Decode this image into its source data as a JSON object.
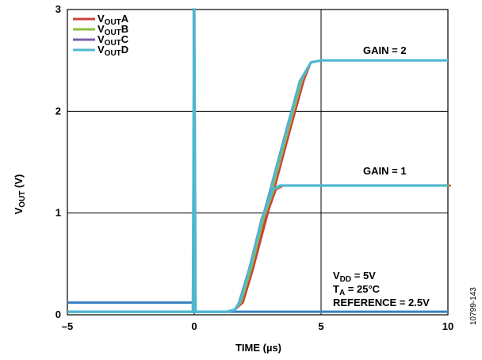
{
  "chart_data": {
    "type": "line",
    "xlabel": "TIME (µs)",
    "ylabel_main": "V",
    "ylabel_sub": "OUT",
    "ylabel_tail": " (V)",
    "xlim": [
      -5,
      10
    ],
    "ylim": [
      0,
      3
    ],
    "x_ticks": [
      -5,
      0,
      5,
      10
    ],
    "x_tick_labels": [
      "–5",
      "0",
      "5",
      "10"
    ],
    "y_ticks": [
      0,
      1,
      2,
      3
    ],
    "y_tick_labels": [
      "0",
      "1",
      "2",
      "3"
    ],
    "grid": true,
    "legend_position": "top-left",
    "series": [
      {
        "name_main": "V",
        "name_sub": "OUT",
        "name_tail": "A",
        "color": "#c9423a"
      },
      {
        "name_main": "V",
        "name_sub": "OUT",
        "name_tail": "B",
        "color": "#8dbf3a"
      },
      {
        "name_main": "V",
        "name_sub": "OUT",
        "name_tail": "C",
        "color": "#7b5ea8"
      },
      {
        "name_main": "V",
        "name_sub": "OUT",
        "name_tail": "D",
        "color": "#4fb7cf"
      }
    ],
    "traces": [
      {
        "gain_label": "GAIN = 2",
        "x": [
          -5,
          -0.05,
          0,
          0.05,
          1.3,
          1.6,
          1.8,
          2.2,
          3.0,
          3.7,
          4.2,
          4.6,
          5.0,
          10
        ],
        "y": [
          0.03,
          0.03,
          3.0,
          0.03,
          0.03,
          0.05,
          0.12,
          0.45,
          1.2,
          1.85,
          2.3,
          2.48,
          2.5,
          2.5
        ]
      },
      {
        "gain_label": "GAIN = 1",
        "x": [
          -5,
          -0.05,
          0,
          0.05,
          1.3,
          1.6,
          1.8,
          2.2,
          2.7,
          3.1,
          3.4,
          4.0,
          10
        ],
        "y": [
          0.03,
          0.03,
          3.0,
          0.03,
          0.03,
          0.05,
          0.12,
          0.45,
          0.95,
          1.23,
          1.27,
          1.27,
          1.27
        ]
      }
    ],
    "step": {
      "x": [
        -5,
        -0.02,
        -0.02,
        0,
        0,
        10
      ],
      "y": [
        0.12,
        0.12,
        3.0,
        3.0,
        0.03,
        0.03
      ],
      "color": "#3a7fc1"
    },
    "annotations": {
      "gain2": "GAIN = 2",
      "gain1": "GAIN = 1",
      "vdd_main": "V",
      "vdd_sub": "DD",
      "vdd_tail": " = 5V",
      "ta_main": "T",
      "ta_sub": "A",
      "ta_tail": " = 25°C",
      "reference": "REFERENCE = 2.5V"
    },
    "figure_id": "10799-143"
  }
}
